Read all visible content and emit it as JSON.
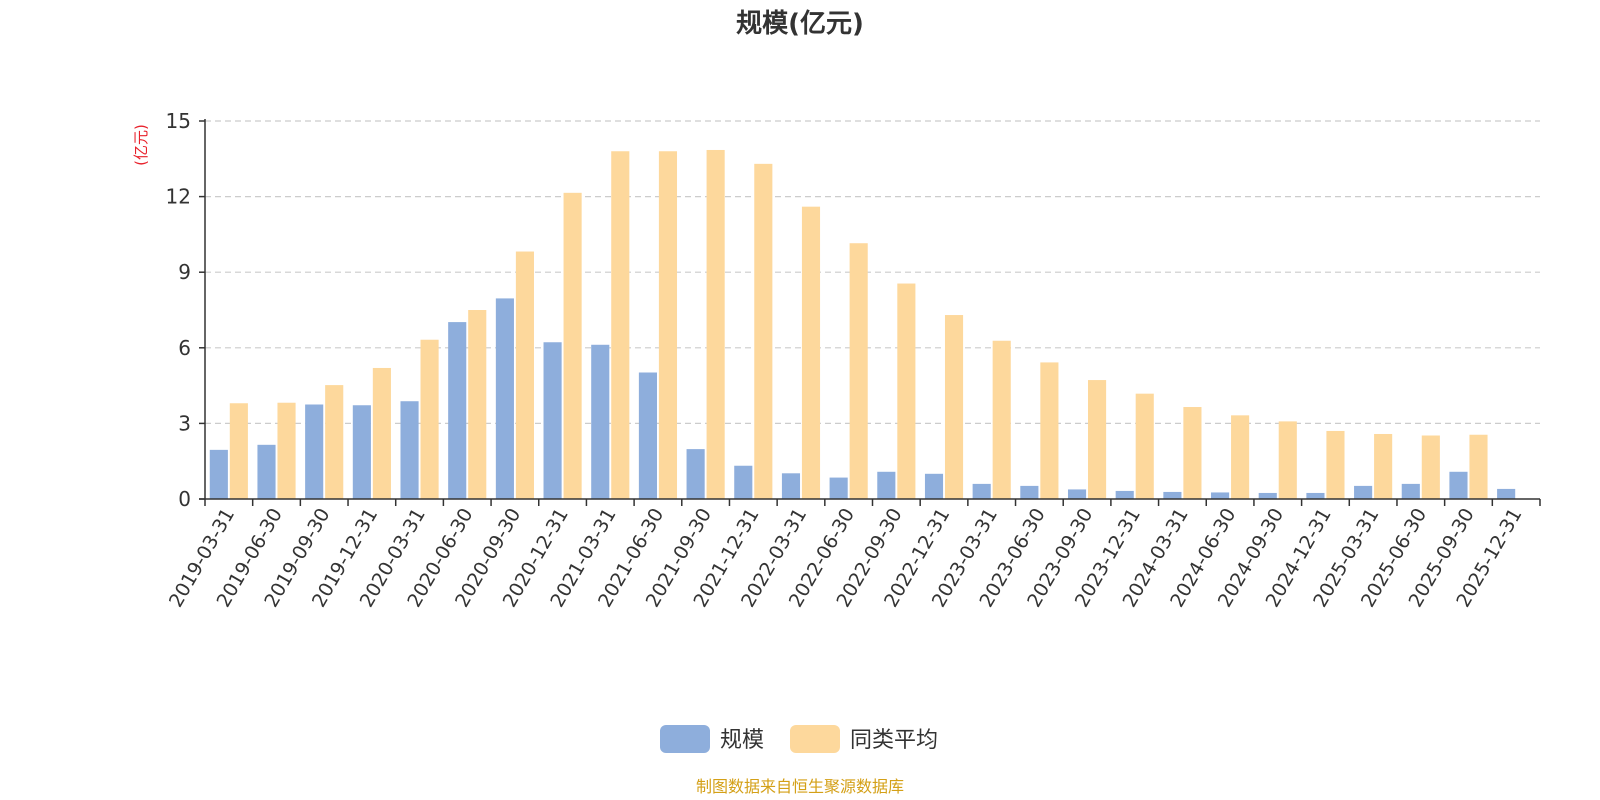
{
  "chart_data": {
    "type": "bar",
    "title": "规模(亿元)",
    "ylabel": "(亿元)",
    "xlabel": "",
    "ylim": [
      0,
      15
    ],
    "yticks": [
      0,
      3,
      6,
      9,
      12,
      15
    ],
    "grid": true,
    "legend_position": "bottom",
    "categories": [
      "2019-03-31",
      "2019-06-30",
      "2019-09-30",
      "2019-12-31",
      "2020-03-31",
      "2020-06-30",
      "2020-09-30",
      "2020-12-31",
      "2021-03-31",
      "2021-06-30",
      "2021-09-30",
      "2021-12-31",
      "2022-03-31",
      "2022-06-30",
      "2022-09-30",
      "2022-12-31",
      "2023-03-31",
      "2023-06-30",
      "2023-09-30",
      "2023-12-31",
      "2024-03-31",
      "2024-06-30",
      "2024-09-30",
      "2024-12-31",
      "2025-03-31",
      "2025-06-30",
      "2025-09-30",
      "2025-12-31"
    ],
    "series": [
      {
        "name": "规模",
        "color": "#8eaedc",
        "values": [
          1.95,
          2.15,
          3.75,
          3.72,
          3.88,
          7.02,
          7.96,
          6.22,
          6.12,
          5.02,
          1.98,
          1.32,
          1.02,
          0.85,
          1.08,
          1.0,
          0.6,
          0.52,
          0.38,
          0.32,
          0.28,
          0.26,
          0.24,
          0.24,
          0.52,
          0.6,
          1.08,
          0.4
        ]
      },
      {
        "name": "同类平均",
        "color": "#fdd89c",
        "values": [
          3.8,
          3.82,
          4.52,
          5.2,
          6.32,
          7.5,
          9.82,
          12.15,
          13.8,
          13.8,
          13.85,
          13.3,
          11.6,
          10.15,
          8.55,
          7.3,
          6.28,
          5.42,
          4.72,
          4.18,
          3.65,
          3.32,
          3.08,
          2.7,
          2.58,
          2.52,
          2.55,
          null
        ]
      }
    ],
    "source": "制图数据来自恒生聚源数据库"
  }
}
